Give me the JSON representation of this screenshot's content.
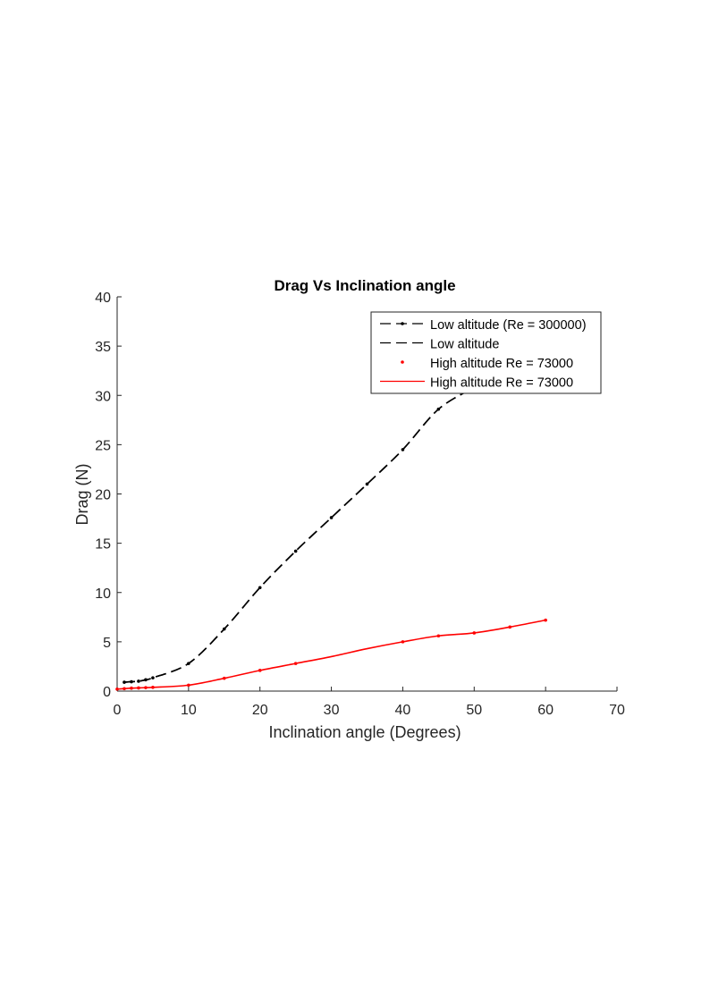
{
  "chart_data": {
    "type": "line",
    "title": "Drag Vs Inclination angle",
    "xlabel": "Inclination angle (Degrees)",
    "ylabel": "Drag (N)",
    "xlim": [
      0,
      70
    ],
    "ylim": [
      0,
      40
    ],
    "xticks": [
      0,
      10,
      20,
      30,
      40,
      50,
      60,
      70
    ],
    "yticks": [
      0,
      5,
      10,
      15,
      20,
      25,
      30,
      35,
      40
    ],
    "grid": false,
    "legend_position": "top-right",
    "series": [
      {
        "name": "Low altitude (Re = 300000)",
        "color": "#000000",
        "style": "dashed-with-markers",
        "x": [
          1,
          2,
          3,
          4,
          5,
          10,
          15,
          20,
          25,
          30,
          35,
          40,
          45,
          50
        ],
        "y": [
          0.9,
          0.95,
          1.0,
          1.15,
          1.35,
          2.8,
          6.3,
          10.5,
          14.2,
          17.6,
          21.0,
          24.5,
          28.6,
          30.8
        ]
      },
      {
        "name": "Low altitude",
        "color": "#000000",
        "style": "dashed",
        "x": [
          1,
          2,
          3,
          4,
          5,
          10,
          15,
          20,
          25,
          30,
          35,
          40,
          45,
          50
        ],
        "y": [
          0.9,
          0.95,
          1.0,
          1.15,
          1.35,
          2.8,
          6.3,
          10.5,
          14.2,
          17.6,
          21.0,
          24.5,
          28.6,
          30.8
        ]
      },
      {
        "name": "High altitude Re = 73000",
        "color": "#ff0000",
        "style": "markers",
        "x": [
          0,
          1,
          2,
          3,
          4,
          5,
          10,
          15,
          20,
          25,
          40,
          45,
          50,
          55,
          60
        ],
        "y": [
          0.2,
          0.25,
          0.3,
          0.32,
          0.35,
          0.38,
          0.6,
          1.3,
          2.1,
          2.8,
          5.0,
          5.6,
          5.9,
          6.5,
          7.2
        ]
      },
      {
        "name": "High altitude Re = 73000",
        "color": "#ff0000",
        "style": "solid",
        "x": [
          0,
          1,
          2,
          3,
          4,
          5,
          10,
          15,
          20,
          25,
          30,
          35,
          40,
          45,
          50,
          55,
          60
        ],
        "y": [
          0.2,
          0.25,
          0.3,
          0.32,
          0.35,
          0.38,
          0.6,
          1.3,
          2.1,
          2.8,
          3.5,
          4.3,
          5.0,
          5.6,
          5.9,
          6.5,
          7.2
        ]
      }
    ]
  }
}
